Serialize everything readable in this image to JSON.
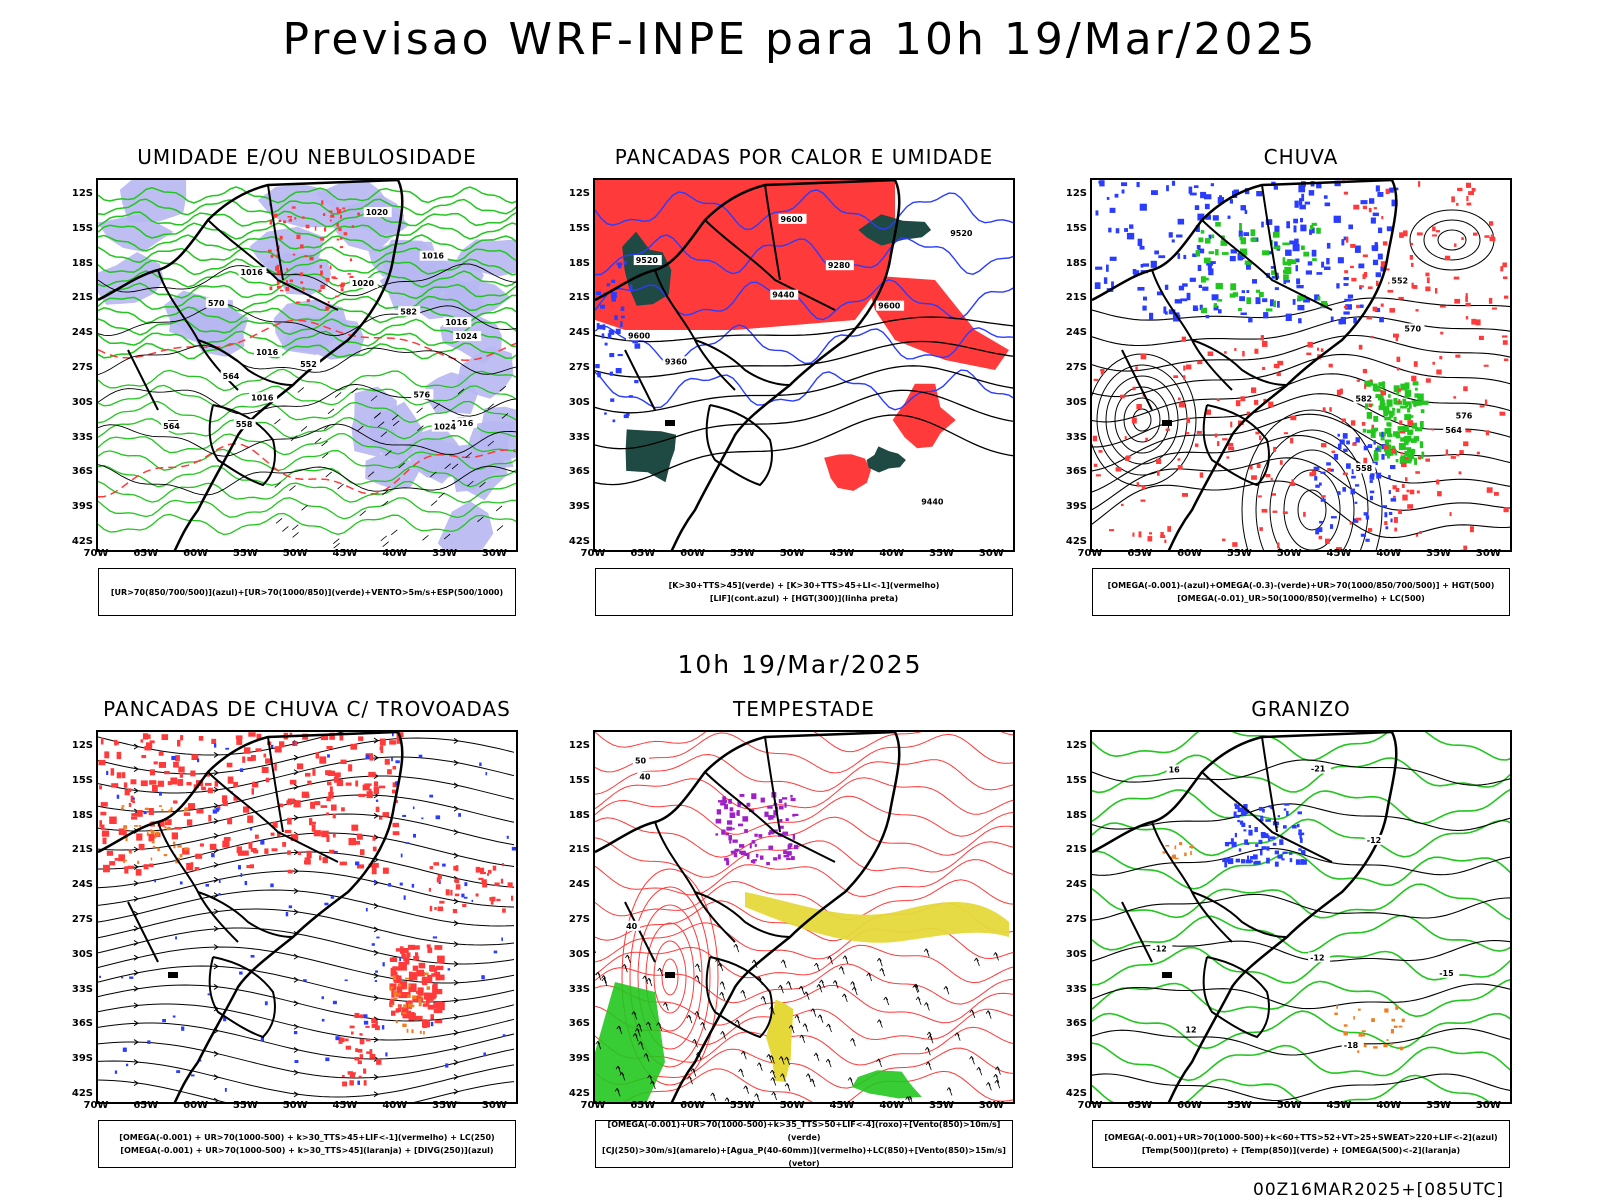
{
  "title": "Previsao WRF-INPE  para 10h 19/Mar/2025",
  "subtitle": "10h 19/Mar/2025",
  "footer": "00Z16MAR2025+[085UTC]",
  "lat_labels": [
    "12S",
    "15S",
    "18S",
    "21S",
    "24S",
    "27S",
    "30S",
    "33S",
    "36S",
    "39S",
    "42S"
  ],
  "lon_labels": [
    "70W",
    "65W",
    "60W",
    "55W",
    "50W",
    "45W",
    "40W",
    "35W",
    "30W"
  ],
  "panels": [
    {
      "title": "UMIDADE E/OU NEBULOSIDADE",
      "legend": [
        "[UR>70(850/700/500)](azul)+[UR>70(1000/850)](verde)+VENTO>5m/s+ESP(500/1000)"
      ],
      "contour_labels": [
        "1016",
        "1016",
        "1020",
        "1024",
        "1016",
        "1016",
        "1016",
        "1020",
        "1024",
        "1016",
        "570",
        "576",
        "582",
        "558",
        "564",
        "552",
        "564"
      ]
    },
    {
      "title": "PANCADAS POR CALOR E UMIDADE",
      "legend": [
        "[K>30+TTS>45](verde) + [K>30+TTS>45+LI<-1](vermelho)",
        "[LIF](cont.azul) + [HGT(300)](linha preta)"
      ],
      "contour_labels": [
        "9600",
        "9600",
        "9600",
        "9520",
        "9520",
        "9440",
        "9360",
        "9280",
        "9440"
      ]
    },
    {
      "title": "CHUVA",
      "legend": [
        "[OMEGA(-0.001)-(azul)+OMEGA(-0.3)-(verde)+UR>70(1000/850/700/500)] + HGT(500)",
        "[OMEGA(-0.01)_UR>50(1000/850)(vermelho) + LC(500)"
      ],
      "contour_labels": [
        "582",
        "576",
        "570",
        "564",
        "558",
        "552"
      ]
    },
    {
      "title": "PANCADAS DE CHUVA C/ TROVOADAS",
      "legend": [
        "[OMEGA(-0.001) + UR>70(1000-500) + k>30_TTS>45+LIF<-1](vermelho) + LC(250)",
        "[OMEGA(-0.001) + UR>70(1000-500) + k>30_TTS>45](laranja) + [DIVG(250)](azul)"
      ],
      "contour_labels": []
    },
    {
      "title": "TEMPESTADE",
      "legend": [
        "[OMEGA(-0.001)+UR>70(1000-500)+k>35_TTS>50+LIF<-4](roxo)+[Vento(850)>10m/s](verde)",
        "[CJ(250)>30m/s](amarelo)+[Agua_P(40-60mm)](vermelho)+LC(850)+[Vento(850)>15m/s](vetor)"
      ],
      "contour_labels": [
        "40",
        "50",
        "40"
      ]
    },
    {
      "title": "GRANIZO",
      "legend": [
        "[OMEGA(-0.001)+UR>70(1000-500)+k<60+TTS>52+VT>25+SWEAT>220+LIF<-2](azul)",
        "[Temp(500)](preto) + [Temp(850)](verde) + [OMEGA(500)<-2](laranja)"
      ],
      "contour_labels": [
        "-12",
        "-12",
        "-12",
        "-15",
        "-18",
        "-21",
        "16",
        "12"
      ]
    }
  ],
  "colors": {
    "blue": "#2a3cff",
    "green": "#22c61f",
    "red": "#ff3a3a",
    "lavender": "#b7b7f2",
    "darkteal": "#1f4a44",
    "yellow": "#e5d93a",
    "purple": "#a020c8",
    "orange": "#f07d1f"
  }
}
